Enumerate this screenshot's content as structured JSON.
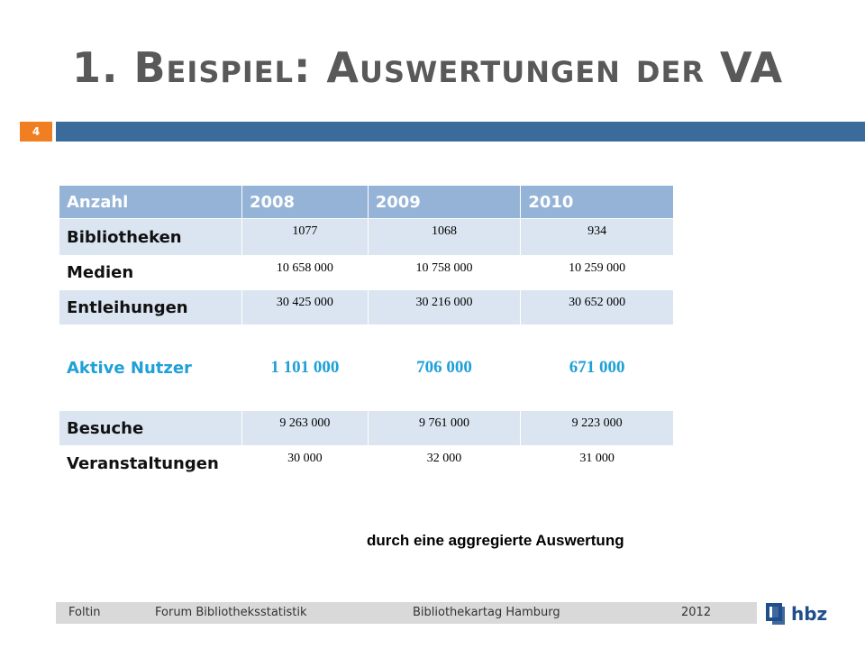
{
  "header": {
    "title": "1. Beispiel: Auswertungen der VA",
    "slide_number": "4"
  },
  "table": {
    "columns": [
      "Anzahl",
      "2008",
      "2009",
      "2010"
    ],
    "rows": [
      [
        "Bibliotheken",
        "1077",
        "1068",
        "934"
      ],
      [
        "Medien",
        "10 658 000",
        "10 758 000",
        "10 259 000"
      ],
      [
        "Entleihungen",
        "30 425 000",
        "30 216 000",
        "30 652 000"
      ],
      [
        "Aktive Nutzer",
        "1 101 000",
        "706 000",
        "671 000"
      ],
      [
        "Besuche",
        "9 263 000",
        "9 761 000",
        "9 223 000"
      ],
      [
        "Veranstaltungen",
        "30 000",
        "32 000",
        "31 000"
      ]
    ]
  },
  "caption": "durch eine aggregierte Auswertung",
  "footer": {
    "author": "Foltin",
    "topic": "Forum Bibliotheksstatistik",
    "event": "Bibliothekartag Hamburg",
    "year": "2012",
    "logo": "hbz"
  }
}
